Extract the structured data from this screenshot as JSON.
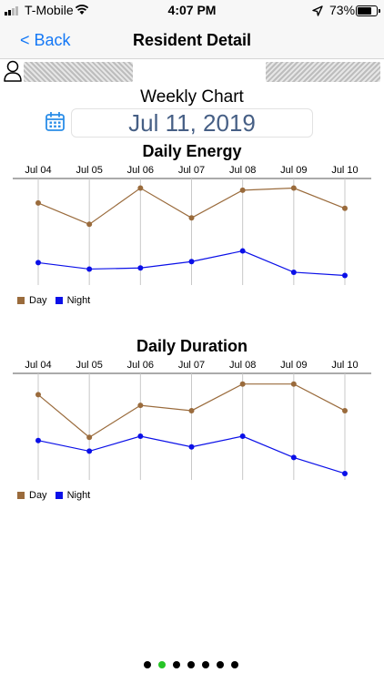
{
  "status_bar": {
    "carrier": "T-Mobile",
    "time": "4:07 PM",
    "battery": "73%"
  },
  "nav": {
    "back_label": "< Back",
    "title": "Resident Detail"
  },
  "weekly_title": "Weekly Chart",
  "date": "Jul 11, 2019",
  "page_dots": {
    "count": 7,
    "active_index": 1
  },
  "colors": {
    "day": "#9a6b3c",
    "night": "#0b10e8",
    "accent": "#1478f6",
    "date_text": "#465f85",
    "active_dot": "#27c427"
  },
  "chart_data": [
    {
      "type": "line",
      "title": "Daily Energy",
      "categories": [
        "Jul 04",
        "Jul 05",
        "Jul 06",
        "Jul 07",
        "Jul 08",
        "Jul 09",
        "Jul 10"
      ],
      "ylim": [
        0,
        100
      ],
      "grid": "vertical",
      "legend": "bottom-left",
      "series": [
        {
          "name": "Day",
          "values": [
            77,
            57,
            91,
            63,
            89,
            91,
            72
          ]
        },
        {
          "name": "Night",
          "values": [
            21,
            15,
            16,
            22,
            32,
            12,
            9
          ]
        }
      ]
    },
    {
      "type": "line",
      "title": "Daily Duration",
      "categories": [
        "Jul 04",
        "Jul 05",
        "Jul 06",
        "Jul 07",
        "Jul 08",
        "Jul 09",
        "Jul 10"
      ],
      "ylim": [
        0,
        100
      ],
      "grid": "vertical",
      "legend": "bottom-left",
      "series": [
        {
          "name": "Day",
          "values": [
            80,
            40,
            70,
            65,
            90,
            90,
            65
          ]
        },
        {
          "name": "Night",
          "values": [
            37,
            27,
            41,
            31,
            41,
            21,
            6
          ]
        }
      ]
    }
  ]
}
